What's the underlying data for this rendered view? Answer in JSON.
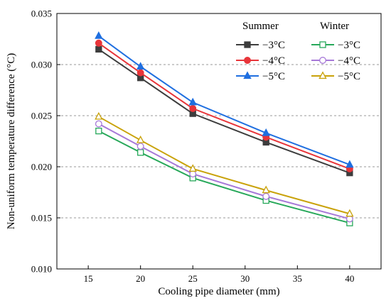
{
  "chart_data": {
    "type": "line",
    "title": "",
    "xlabel": "Cooling pipe diameter (mm)",
    "ylabel": "Non-uniform temperature difference (°C)",
    "xlim": [
      12,
      43
    ],
    "ylim": [
      0.01,
      0.035
    ],
    "xticks": [
      15,
      20,
      25,
      30,
      35,
      40
    ],
    "xtick_labels": [
      "15",
      "20",
      "25",
      "30",
      "35",
      "40"
    ],
    "yticks": [
      0.01,
      0.015,
      0.02,
      0.025,
      0.03,
      0.035
    ],
    "ytick_labels": [
      "0.010",
      "0.015",
      "0.020",
      "0.025",
      "0.030",
      "0.035"
    ],
    "grid": "horizontal-dashed",
    "legend": {
      "placement": "top-right",
      "group_headers": [
        "Summer",
        "Winter"
      ]
    },
    "x": [
      16,
      20,
      25,
      32,
      40
    ],
    "series": [
      {
        "name": "−3°C",
        "group": "Summer",
        "color": "#3d3d3d",
        "marker": "square-filled",
        "values": [
          0.0315,
          0.0287,
          0.0252,
          0.0224,
          0.0194
        ]
      },
      {
        "name": "−4°C",
        "group": "Summer",
        "color": "#e8353a",
        "marker": "circle-filled",
        "values": [
          0.0321,
          0.0292,
          0.0257,
          0.0229,
          0.0198
        ]
      },
      {
        "name": "−5°C",
        "group": "Summer",
        "color": "#1f6fe0",
        "marker": "triangle-filled",
        "values": [
          0.0328,
          0.0298,
          0.0263,
          0.0233,
          0.0202
        ]
      },
      {
        "name": "−3°C",
        "group": "Winter",
        "color": "#27a85a",
        "marker": "square-open",
        "values": [
          0.0235,
          0.0214,
          0.0189,
          0.0167,
          0.0145
        ]
      },
      {
        "name": "−4°C",
        "group": "Winter",
        "color": "#a779d8",
        "marker": "circle-open",
        "values": [
          0.0242,
          0.022,
          0.0193,
          0.0171,
          0.0149
        ]
      },
      {
        "name": "−5°C",
        "group": "Winter",
        "color": "#c9a20a",
        "marker": "triangle-open",
        "values": [
          0.0249,
          0.0226,
          0.0198,
          0.0177,
          0.0154
        ]
      }
    ]
  }
}
